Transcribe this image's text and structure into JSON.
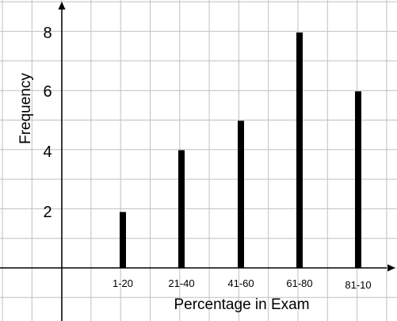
{
  "chart_data": {
    "type": "bar",
    "categories": [
      "1-20",
      "21-40",
      "41-60",
      "61-80",
      "81-10"
    ],
    "values": [
      1.9,
      4,
      5,
      8,
      6
    ],
    "xlabel": "Percentage in Exam",
    "ylabel": "Frequency",
    "y_ticks": [
      "2",
      "4",
      "6",
      "8"
    ],
    "ylim": [
      0,
      8
    ],
    "grid": true,
    "bar_color": "#000000",
    "grid_color": "#c0c0c0",
    "axis_color": "#000000"
  }
}
